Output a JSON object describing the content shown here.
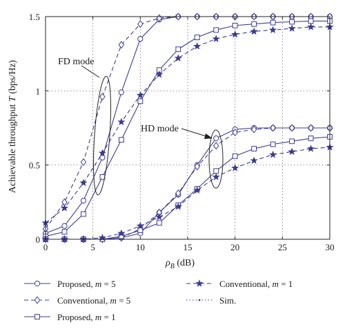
{
  "chart_data": {
    "type": "line",
    "xlabel": "ρ",
    "xlabel_sub": "B",
    "xlabel_unit": " (dB)",
    "ylabel": "Achievable throughput ",
    "ylabel_symbol": "T",
    "ylabel_unit": " (bps/Hz)",
    "xlim": [
      0,
      30
    ],
    "ylim": [
      0,
      1.5
    ],
    "x_ticks": [
      0,
      5,
      10,
      15,
      20,
      25,
      30
    ],
    "y_ticks": [
      0,
      0.5,
      1,
      1.5
    ],
    "x_tick_labels": [
      "0",
      "5",
      "10",
      "15",
      "20",
      "25",
      "30"
    ],
    "y_tick_labels": [
      "0",
      "0.5",
      "1",
      "1.5"
    ],
    "grid": true,
    "line_color": "#3b3b8f",
    "annotations": [
      {
        "text": "FD mode",
        "x": 6,
        "y": 0.75
      },
      {
        "text": "HD mode",
        "x": 18,
        "y": 0.55
      }
    ],
    "series": [
      {
        "legend": "Proposed, m = 5 (FD)",
        "marker": "circle",
        "dash": "solid",
        "x": [
          0,
          2,
          4,
          6,
          8,
          10,
          12,
          14,
          16,
          18,
          20,
          22,
          24,
          26,
          28,
          30
        ],
        "y": [
          0.04,
          0.09,
          0.26,
          0.55,
          0.99,
          1.35,
          1.48,
          1.5,
          1.5,
          1.5,
          1.5,
          1.5,
          1.5,
          1.5,
          1.5,
          1.5
        ]
      },
      {
        "legend": "Conventional, m = 5 (FD)",
        "marker": "diamond",
        "dash": "dashed",
        "x": [
          0,
          2,
          4,
          6,
          8,
          10,
          12,
          14,
          16,
          18,
          20,
          22,
          24,
          26,
          28,
          30
        ],
        "y": [
          0.07,
          0.25,
          0.52,
          0.96,
          1.31,
          1.45,
          1.49,
          1.5,
          1.5,
          1.5,
          1.5,
          1.5,
          1.5,
          1.5,
          1.5,
          1.5
        ]
      },
      {
        "legend": "Proposed, m = 1 (FD)",
        "marker": "square",
        "dash": "solid",
        "x": [
          0,
          2,
          4,
          6,
          8,
          10,
          12,
          14,
          16,
          18,
          20,
          22,
          24,
          26,
          28,
          30
        ],
        "y": [
          0.02,
          0.05,
          0.17,
          0.42,
          0.67,
          0.93,
          1.14,
          1.28,
          1.36,
          1.41,
          1.44,
          1.45,
          1.46,
          1.465,
          1.47,
          1.47
        ]
      },
      {
        "legend": "Conventional, m = 1 (FD)",
        "marker": "star",
        "dash": "dashed",
        "x": [
          0,
          2,
          4,
          6,
          8,
          10,
          12,
          14,
          16,
          18,
          20,
          22,
          24,
          26,
          28,
          30
        ],
        "y": [
          0.11,
          0.21,
          0.38,
          0.58,
          0.79,
          0.97,
          1.11,
          1.22,
          1.3,
          1.35,
          1.38,
          1.4,
          1.41,
          1.42,
          1.43,
          1.43
        ]
      },
      {
        "legend": "Proposed, m = 5 (HD)",
        "marker": "circle",
        "dash": "solid",
        "x": [
          0,
          2,
          4,
          6,
          8,
          10,
          12,
          14,
          16,
          18,
          20,
          22,
          24,
          26,
          28,
          30
        ],
        "y": [
          0,
          0,
          0,
          0,
          0.01,
          0.04,
          0.18,
          0.3,
          0.5,
          0.68,
          0.74,
          0.75,
          0.75,
          0.75,
          0.75,
          0.75
        ]
      },
      {
        "legend": "Conventional, m = 5 (HD)",
        "marker": "diamond",
        "dash": "dashed",
        "x": [
          0,
          2,
          4,
          6,
          8,
          10,
          12,
          14,
          16,
          18,
          20,
          22,
          24,
          26,
          28,
          30
        ],
        "y": [
          0,
          0,
          0,
          0,
          0.01,
          0.07,
          0.18,
          0.31,
          0.49,
          0.63,
          0.72,
          0.74,
          0.75,
          0.75,
          0.75,
          0.75
        ]
      },
      {
        "legend": "Proposed, m = 1 (HD)",
        "marker": "square",
        "dash": "solid",
        "x": [
          0,
          2,
          4,
          6,
          8,
          10,
          12,
          14,
          16,
          18,
          20,
          22,
          24,
          26,
          28,
          30
        ],
        "y": [
          0,
          0,
          0,
          0,
          0.02,
          0.06,
          0.11,
          0.23,
          0.34,
          0.46,
          0.56,
          0.61,
          0.64,
          0.66,
          0.68,
          0.69
        ]
      },
      {
        "legend": "Conventional, m = 1 (HD)",
        "marker": "star",
        "dash": "dashed",
        "x": [
          0,
          2,
          4,
          6,
          8,
          10,
          12,
          14,
          16,
          18,
          20,
          22,
          24,
          26,
          28,
          30
        ],
        "y": [
          0,
          0,
          0,
          0.01,
          0.04,
          0.09,
          0.15,
          0.22,
          0.33,
          0.42,
          0.48,
          0.53,
          0.57,
          0.59,
          0.61,
          0.62
        ]
      }
    ],
    "legend": [
      {
        "label": "Proposed, ",
        "var": "m",
        "value": " = 5",
        "marker": "circle",
        "dash": "solid"
      },
      {
        "label": "Conventional, ",
        "var": "m",
        "value": " = 5",
        "marker": "diamond",
        "dash": "dashed"
      },
      {
        "label": "Proposed, ",
        "var": "m",
        "value": " = 1",
        "marker": "square",
        "dash": "solid"
      },
      {
        "label": "Conventional, ",
        "var": "m",
        "value": " = 1",
        "marker": "star",
        "dash": "dashed"
      },
      {
        "label": "Sim.",
        "var": "",
        "value": "",
        "marker": "dot",
        "dash": "dotted"
      }
    ]
  }
}
